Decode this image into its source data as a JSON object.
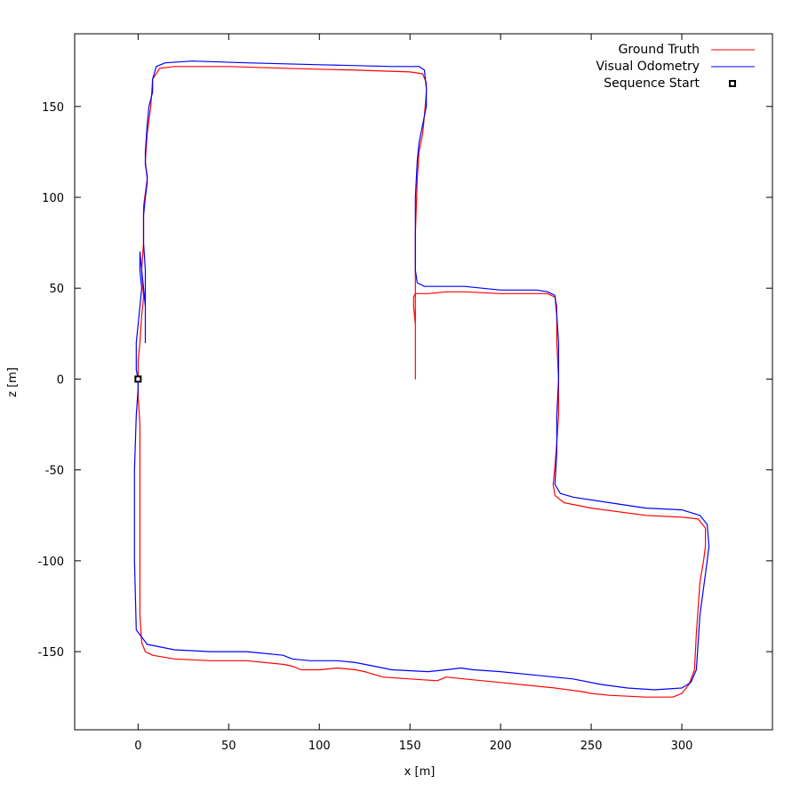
{
  "chart_data": {
    "type": "line",
    "title": "",
    "xlabel": "x [m]",
    "ylabel": "z [m]",
    "xlim": [
      -35,
      350
    ],
    "ylim": [
      -193,
      190
    ],
    "x_ticks": [
      0,
      50,
      100,
      150,
      200,
      250,
      300
    ],
    "y_ticks": [
      -150,
      -100,
      -50,
      0,
      50,
      100,
      150
    ],
    "grid": false,
    "legend_position": "top-right",
    "colors": {
      "ground_truth": "#ff0000",
      "visual_odometry": "#0000ff",
      "start_marker": "#000000"
    },
    "series": [
      {
        "name": "Ground Truth",
        "points": [
          [
            0,
            0
          ],
          [
            0,
            -10
          ],
          [
            1,
            -25
          ],
          [
            1,
            -60
          ],
          [
            1,
            -100
          ],
          [
            1,
            -130
          ],
          [
            2,
            -145
          ],
          [
            4,
            -150
          ],
          [
            8,
            -152
          ],
          [
            20,
            -154
          ],
          [
            40,
            -155
          ],
          [
            60,
            -155
          ],
          [
            80,
            -157
          ],
          [
            85,
            -158
          ],
          [
            90,
            -160
          ],
          [
            95,
            -160
          ],
          [
            100,
            -160
          ],
          [
            110,
            -159
          ],
          [
            120,
            -160
          ],
          [
            125,
            -161
          ],
          [
            135,
            -164
          ],
          [
            150,
            -165
          ],
          [
            165,
            -166
          ],
          [
            170,
            -164
          ],
          [
            180,
            -165
          ],
          [
            200,
            -167
          ],
          [
            230,
            -170
          ],
          [
            245,
            -172
          ],
          [
            250,
            -173
          ],
          [
            260,
            -174
          ],
          [
            280,
            -175
          ],
          [
            295,
            -175
          ],
          [
            300,
            -173
          ],
          [
            304,
            -168
          ],
          [
            307,
            -160
          ],
          [
            308,
            -140
          ],
          [
            310,
            -112
          ],
          [
            312,
            -100
          ],
          [
            313,
            -92
          ],
          [
            313,
            -82
          ],
          [
            309,
            -77
          ],
          [
            300,
            -76
          ],
          [
            280,
            -75
          ],
          [
            250,
            -71
          ],
          [
            235,
            -68
          ],
          [
            230,
            -64
          ],
          [
            229,
            -58
          ],
          [
            230,
            -48
          ],
          [
            231,
            -35
          ],
          [
            232,
            -20
          ],
          [
            232,
            0
          ],
          [
            231,
            20
          ],
          [
            231,
            40
          ],
          [
            230,
            45
          ],
          [
            226,
            47
          ],
          [
            220,
            47
          ],
          [
            200,
            47
          ],
          [
            180,
            48
          ],
          [
            170,
            48
          ],
          [
            160,
            47
          ],
          [
            153,
            47
          ],
          [
            152,
            45
          ],
          [
            152,
            40
          ],
          [
            153,
            30
          ],
          [
            153,
            0
          ],
          [
            153,
            52
          ],
          [
            153,
            80
          ],
          [
            154,
            110
          ],
          [
            155,
            125
          ],
          [
            157,
            135
          ],
          [
            158,
            145
          ],
          [
            159,
            158
          ],
          [
            159,
            163
          ],
          [
            157,
            168
          ],
          [
            150,
            169
          ],
          [
            120,
            170
          ],
          [
            80,
            171
          ],
          [
            50,
            172
          ],
          [
            20,
            172
          ],
          [
            12,
            171
          ],
          [
            8,
            165
          ],
          [
            7,
            150
          ],
          [
            5,
            135
          ],
          [
            4,
            120
          ],
          [
            5,
            110
          ],
          [
            3,
            95
          ],
          [
            3,
            75
          ],
          [
            2,
            60
          ],
          [
            3,
            45
          ],
          [
            2,
            35
          ],
          [
            1,
            20
          ],
          [
            0,
            10
          ],
          [
            0,
            0
          ]
        ]
      },
      {
        "name": "Visual Odometry",
        "points": [
          [
            0,
            0
          ],
          [
            -1,
            5
          ],
          [
            -1,
            20
          ],
          [
            0,
            30
          ],
          [
            1,
            40
          ],
          [
            2,
            50
          ],
          [
            1,
            60
          ],
          [
            1,
            70
          ],
          [
            2,
            60
          ],
          [
            3,
            50
          ],
          [
            4,
            40
          ],
          [
            4,
            30
          ],
          [
            4,
            20
          ],
          [
            4,
            30
          ],
          [
            4,
            40
          ],
          [
            4,
            60
          ],
          [
            3,
            75
          ],
          [
            3,
            90
          ],
          [
            4,
            100
          ],
          [
            5,
            108
          ],
          [
            5,
            112
          ],
          [
            4,
            118
          ],
          [
            4,
            125
          ],
          [
            5,
            140
          ],
          [
            6,
            150
          ],
          [
            8,
            158
          ],
          [
            8,
            165
          ],
          [
            10,
            172
          ],
          [
            15,
            174
          ],
          [
            30,
            175
          ],
          [
            60,
            174
          ],
          [
            100,
            173
          ],
          [
            140,
            172
          ],
          [
            155,
            172
          ],
          [
            158,
            170
          ],
          [
            159,
            160
          ],
          [
            159,
            150
          ],
          [
            157,
            140
          ],
          [
            155,
            130
          ],
          [
            154,
            120
          ],
          [
            153,
            100
          ],
          [
            153,
            80
          ],
          [
            153,
            60
          ],
          [
            154,
            53
          ],
          [
            158,
            51
          ],
          [
            170,
            51
          ],
          [
            180,
            51
          ],
          [
            200,
            49
          ],
          [
            220,
            49
          ],
          [
            226,
            48
          ],
          [
            230,
            46
          ],
          [
            231,
            35
          ],
          [
            232,
            20
          ],
          [
            232,
            0
          ],
          [
            231,
            -20
          ],
          [
            231,
            -40
          ],
          [
            230,
            -58
          ],
          [
            233,
            -63
          ],
          [
            240,
            -65
          ],
          [
            260,
            -68
          ],
          [
            280,
            -71
          ],
          [
            300,
            -72
          ],
          [
            310,
            -75
          ],
          [
            314,
            -80
          ],
          [
            315,
            -92
          ],
          [
            314,
            -100
          ],
          [
            312,
            -115
          ],
          [
            310,
            -130
          ],
          [
            309,
            -145
          ],
          [
            308,
            -160
          ],
          [
            305,
            -167
          ],
          [
            300,
            -170
          ],
          [
            285,
            -171
          ],
          [
            270,
            -170
          ],
          [
            255,
            -168
          ],
          [
            240,
            -165
          ],
          [
            220,
            -163
          ],
          [
            200,
            -161
          ],
          [
            185,
            -160
          ],
          [
            178,
            -159
          ],
          [
            170,
            -160
          ],
          [
            160,
            -161
          ],
          [
            140,
            -160
          ],
          [
            130,
            -158
          ],
          [
            120,
            -156
          ],
          [
            110,
            -155
          ],
          [
            95,
            -155
          ],
          [
            85,
            -154
          ],
          [
            80,
            -152
          ],
          [
            60,
            -150
          ],
          [
            40,
            -150
          ],
          [
            20,
            -149
          ],
          [
            5,
            -146
          ],
          [
            -1,
            -138
          ],
          [
            -2,
            -100
          ],
          [
            -2,
            -50
          ],
          [
            -1,
            -20
          ],
          [
            0,
            -5
          ],
          [
            0,
            0
          ]
        ]
      }
    ],
    "start": {
      "name": "Sequence Start",
      "x": 0,
      "y": 0
    }
  }
}
